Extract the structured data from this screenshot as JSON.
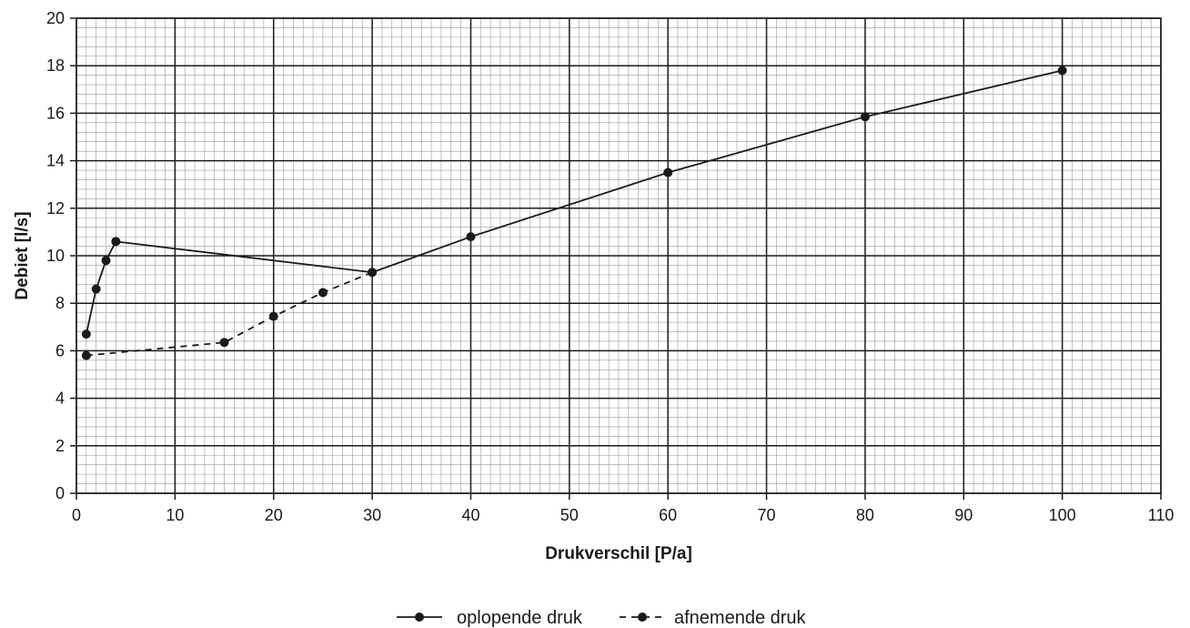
{
  "chart_data": {
    "type": "line",
    "title": "",
    "xlabel": "Drukverschil [P/a]",
    "ylabel": "Debiet [l/s]",
    "xlim": [
      0,
      110
    ],
    "ylim": [
      0,
      20
    ],
    "x_ticks": [
      0,
      10,
      20,
      30,
      40,
      50,
      60,
      70,
      80,
      90,
      100,
      110
    ],
    "y_ticks": [
      0,
      2,
      4,
      6,
      8,
      10,
      12,
      14,
      16,
      18,
      20
    ],
    "x_tick_labels": [
      "0",
      "10",
      "20",
      "30",
      "40",
      "50",
      "60",
      "70",
      "80",
      "90",
      "100",
      "110"
    ],
    "y_tick_labels": [
      "0",
      "2",
      "4",
      "6",
      "8",
      "10",
      "12",
      "14",
      "16",
      "18",
      "20"
    ],
    "grid": true,
    "minor_grid": true,
    "legend_position": "bottom-center",
    "series": [
      {
        "name": "oplopende druk",
        "line_style": "solid",
        "marker": "circle",
        "color": "#1a1a1a",
        "points": [
          [
            1,
            6.7
          ],
          [
            2,
            8.6
          ],
          [
            3,
            9.8
          ],
          [
            4,
            10.6
          ],
          [
            30,
            9.3
          ],
          [
            40,
            10.8
          ],
          [
            60,
            13.5
          ],
          [
            80,
            15.85
          ],
          [
            100,
            17.8
          ]
        ]
      },
      {
        "name": "afnemende druk",
        "line_style": "dashed",
        "marker": "circle",
        "color": "#1a1a1a",
        "points": [
          [
            1,
            5.8
          ],
          [
            15,
            6.35
          ],
          [
            20,
            7.45
          ],
          [
            25,
            8.45
          ],
          [
            30,
            9.3
          ]
        ]
      }
    ]
  }
}
